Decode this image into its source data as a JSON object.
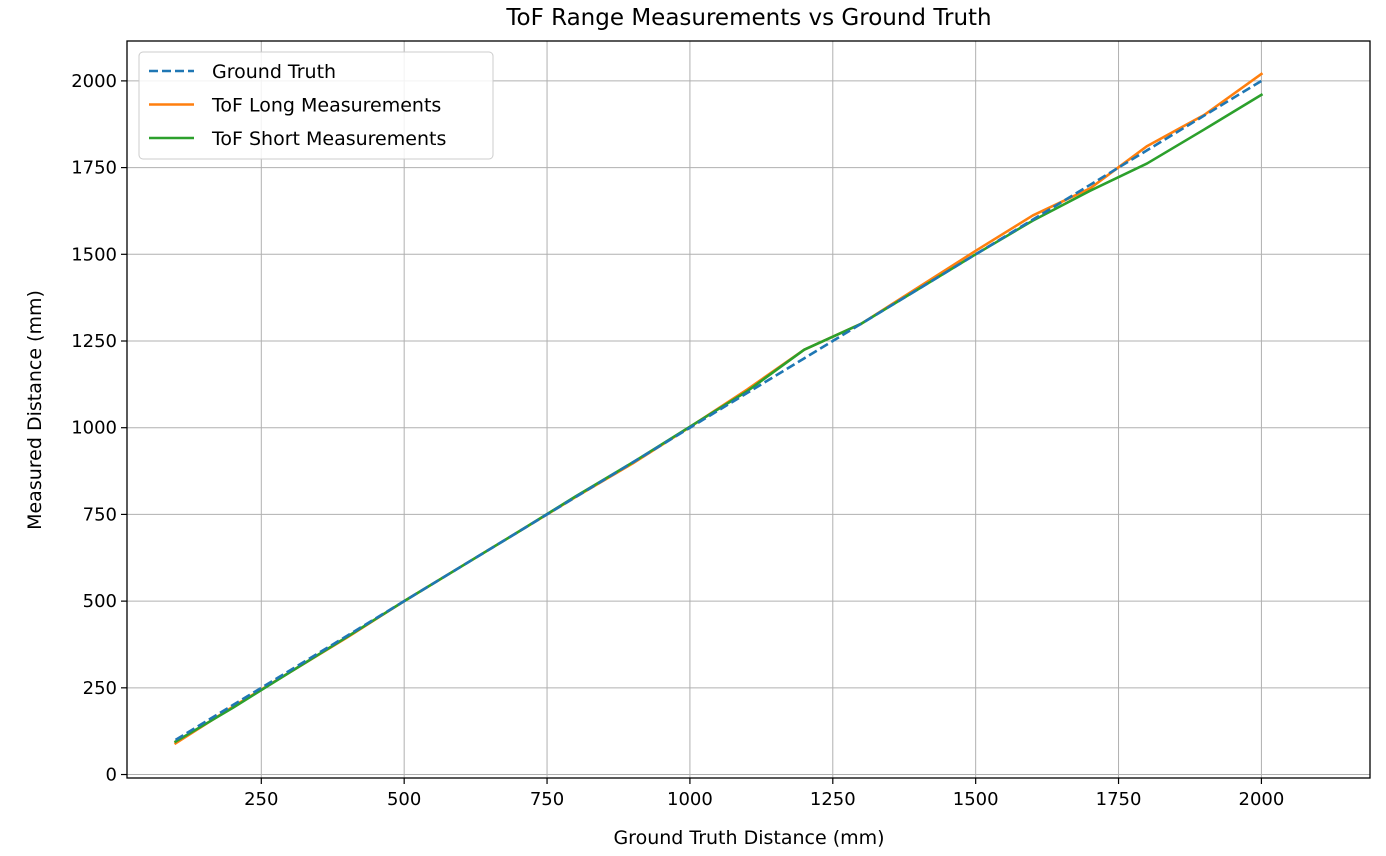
{
  "chart_data": {
    "type": "line",
    "title": "ToF Range Measurements vs Ground Truth",
    "xlabel": "Ground Truth Distance (mm)",
    "ylabel": "Measured Distance (mm)",
    "xlim": [
      15,
      2190
    ],
    "ylim": [
      -10,
      2115
    ],
    "xticks": [
      250,
      500,
      750,
      1000,
      1250,
      1500,
      1750,
      2000
    ],
    "yticks": [
      0,
      250,
      500,
      750,
      1000,
      1250,
      1500,
      1750,
      2000
    ],
    "grid": true,
    "legend_position": "top-left",
    "x": [
      100,
      200,
      300,
      400,
      500,
      600,
      700,
      800,
      900,
      1000,
      1100,
      1200,
      1300,
      1400,
      1500,
      1600,
      1700,
      1800,
      1900,
      2000
    ],
    "series": [
      {
        "name": "Ground Truth",
        "color": "#1f77b4",
        "dash": "dashed",
        "values": [
          100,
          200,
          300,
          400,
          500,
          600,
          700,
          800,
          900,
          1000,
          1100,
          1200,
          1300,
          1400,
          1500,
          1600,
          1700,
          1800,
          1900,
          2000
        ]
      },
      {
        "name": "ToF Long Measurements",
        "color": "#ff7f0e",
        "dash": "solid",
        "values": [
          90,
          195,
          295,
          395,
          500,
          600,
          700,
          800,
          897,
          1002,
          1110,
          1225,
          1300,
          1405,
          1510,
          1612,
          1690,
          1812,
          1902,
          2020
        ]
      },
      {
        "name": "ToF Short Measurements",
        "color": "#2ca02c",
        "dash": "solid",
        "values": [
          95,
          192,
          295,
          397,
          500,
          600,
          700,
          802,
          900,
          1003,
          1105,
          1225,
          1300,
          1400,
          1500,
          1597,
          1683,
          1762,
          1860,
          1960
        ]
      }
    ]
  }
}
